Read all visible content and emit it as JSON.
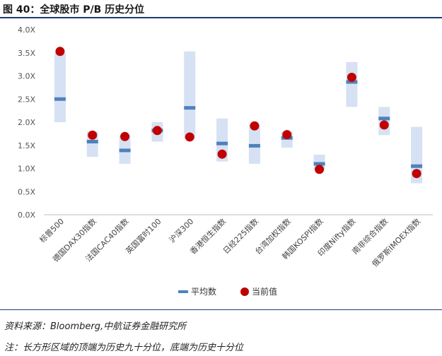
{
  "title": "图 40：全球股市 P/B 历史分位",
  "source": "资料来源：Bloomberg,中航证券金融研究所",
  "note": "注：长方形区域的顶端为历史九十分位，底端为历史十分位",
  "colors": {
    "range": "#d6e2f3",
    "average": "#4e81bd",
    "current": "#c00000",
    "grid": "#d9d9d9",
    "axis": "#bfbfbf",
    "rule": "#1f3b6e"
  },
  "chart_data": {
    "type": "scatter",
    "categories": [
      "标普500",
      "德国DAX30指数",
      "法国CAC40指数",
      "英国富时100",
      "沪深300",
      "香港恒生指数",
      "日经225指数",
      "台湾加权指数",
      "韩国KOSPI指数",
      "印度Nifty指数",
      "南非综合指数",
      "俄罗斯IMOEX指数"
    ],
    "range_low": [
      2.0,
      1.25,
      1.1,
      1.58,
      1.65,
      1.15,
      1.1,
      1.45,
      0.98,
      2.33,
      1.72,
      0.68
    ],
    "range_high": [
      3.5,
      1.8,
      1.72,
      2.0,
      3.53,
      2.08,
      1.95,
      1.8,
      1.3,
      3.3,
      2.33,
      1.9
    ],
    "series": [
      {
        "name": "平均数",
        "values": [
          2.5,
          1.58,
          1.39,
          1.82,
          2.31,
          1.54,
          1.49,
          1.66,
          1.1,
          2.87,
          2.08,
          1.05
        ]
      },
      {
        "name": "当前值",
        "values": [
          3.53,
          1.72,
          1.69,
          1.82,
          1.68,
          1.31,
          1.92,
          1.73,
          0.98,
          2.97,
          1.94,
          0.89
        ]
      }
    ],
    "yticks": [
      "0.0X",
      "0.5X",
      "1.0X",
      "1.5X",
      "2.0X",
      "2.5X",
      "3.0X",
      "3.5X",
      "4.0X"
    ],
    "ylim": [
      0,
      4
    ],
    "grid": false,
    "legend_position": "bottom"
  }
}
